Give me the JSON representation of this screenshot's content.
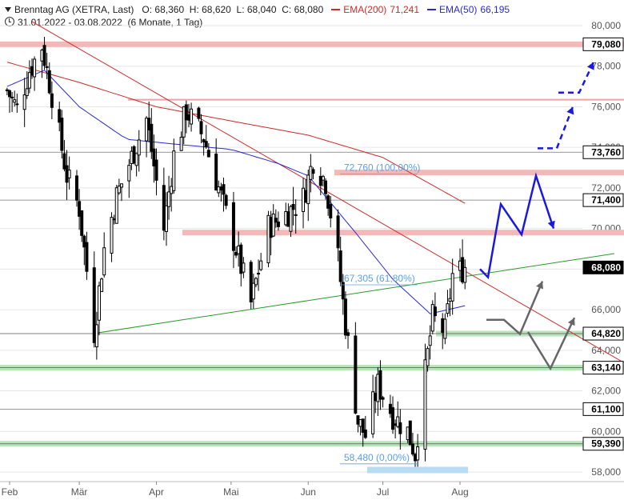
{
  "header": {
    "instrument": "Brenntag AG (XETRA, Last)",
    "open": "O: 68,360",
    "high": "H: 68,620",
    "low": "L: 68,040",
    "close": "C: 68,080",
    "ema200_label": "EMA(200)",
    "ema200_value": "71,241",
    "ema50_label": "EMA(50)",
    "ema50_value": "66,195",
    "date_range": "31.01.2022 - 03.08.2022",
    "period": "(6 Monate, 1 Tag)"
  },
  "colors": {
    "ema200": "#cc2b2b",
    "ema50": "#2b2bcc",
    "trend_down": "#cc2b2b",
    "trend_up": "#2a9a2a",
    "resistance_zone": "#f4b8b8",
    "support_zone": "#b9e3b9",
    "scenario_primary": "#1a1adf",
    "scenario_alt": "#666666",
    "fib_label": "#5aa0e8",
    "candle": "#000000"
  },
  "chart_data": {
    "type": "candlestick",
    "y_axis": {
      "range": [
        57.5,
        81.2
      ],
      "ticks": [
        "80,000",
        "78,000",
        "76,000",
        "74,000",
        "72,000",
        "70,000",
        "68,000",
        "66,000",
        "64,000",
        "62,000",
        "60,000",
        "58,000"
      ],
      "tick_values": [
        80,
        78,
        76,
        74,
        72,
        70,
        68,
        66,
        64,
        62,
        60,
        58
      ],
      "position": "right"
    },
    "x_axis": {
      "labels": [
        "Feb",
        "Mär",
        "Apr",
        "Mai",
        "Jun",
        "Jul",
        "Aug"
      ],
      "label_dates": [
        "2022-02-01",
        "2022-03-01",
        "2022-04-01",
        "2022-05-01",
        "2022-06-01",
        "2022-07-01",
        "2022-08-01"
      ],
      "range": [
        "2022-01-31",
        "2022-08-03"
      ]
    },
    "price_tags": [
      {
        "label": "79,080",
        "value": 79.08
      },
      {
        "label": "73,760",
        "value": 73.76
      },
      {
        "label": "71,400",
        "value": 71.4
      },
      {
        "label": "68,080",
        "value": 68.08,
        "current": true
      },
      {
        "label": "64,820",
        "value": 64.82
      },
      {
        "label": "63,140",
        "value": 63.14
      },
      {
        "label": "61,100",
        "value": 61.1
      },
      {
        "label": "59,390",
        "value": 59.39
      }
    ],
    "annotations": [
      {
        "label": "72,760 (100,00%)",
        "value": 72.76
      },
      {
        "label": "67,305 (61,80%)",
        "value": 67.305
      },
      {
        "label": "58,480 (0,00%)",
        "value": 58.48
      }
    ],
    "close_series_anchors": [
      {
        "date": "2022-01-31",
        "close": 76.8
      },
      {
        "date": "2022-02-04",
        "close": 75.9
      },
      {
        "date": "2022-02-09",
        "close": 77.8
      },
      {
        "date": "2022-02-14",
        "close": 79.0
      },
      {
        "date": "2022-02-18",
        "close": 76.6
      },
      {
        "date": "2022-02-24",
        "close": 72.6
      },
      {
        "date": "2022-03-01",
        "close": 71.0
      },
      {
        "date": "2022-03-07",
        "close": 64.9
      },
      {
        "date": "2022-03-11",
        "close": 69.0
      },
      {
        "date": "2022-03-16",
        "close": 71.6
      },
      {
        "date": "2022-03-22",
        "close": 73.5
      },
      {
        "date": "2022-03-28",
        "close": 75.4
      },
      {
        "date": "2022-04-04",
        "close": 70.0
      },
      {
        "date": "2022-04-08",
        "close": 73.6
      },
      {
        "date": "2022-04-13",
        "close": 75.8
      },
      {
        "date": "2022-04-20",
        "close": 74.5
      },
      {
        "date": "2022-04-26",
        "close": 72.0
      },
      {
        "date": "2022-05-03",
        "close": 69.0
      },
      {
        "date": "2022-05-09",
        "close": 66.3
      },
      {
        "date": "2022-05-16",
        "close": 70.1
      },
      {
        "date": "2022-05-24",
        "close": 70.8
      },
      {
        "date": "2022-05-30",
        "close": 71.5
      },
      {
        "date": "2022-06-03",
        "close": 73.4
      },
      {
        "date": "2022-06-08",
        "close": 72.3
      },
      {
        "date": "2022-06-13",
        "close": 68.5
      },
      {
        "date": "2022-06-16",
        "close": 65.3
      },
      {
        "date": "2022-06-21",
        "close": 60.5
      },
      {
        "date": "2022-06-24",
        "close": 59.8
      },
      {
        "date": "2022-06-29",
        "close": 62.3
      },
      {
        "date": "2022-07-05",
        "close": 60.8
      },
      {
        "date": "2022-07-11",
        "close": 60.0
      },
      {
        "date": "2022-07-14",
        "close": 58.9
      },
      {
        "date": "2022-07-18",
        "close": 62.9
      },
      {
        "date": "2022-07-21",
        "close": 65.6
      },
      {
        "date": "2022-07-26",
        "close": 64.9
      },
      {
        "date": "2022-07-29",
        "close": 67.7
      },
      {
        "date": "2022-08-03",
        "close": 68.08
      }
    ],
    "ema200_anchors": [
      {
        "date": "2022-01-31",
        "value": 78.2
      },
      {
        "date": "2022-03-01",
        "value": 77.2
      },
      {
        "date": "2022-04-01",
        "value": 76.0
      },
      {
        "date": "2022-05-01",
        "value": 75.3
      },
      {
        "date": "2022-06-01",
        "value": 74.6
      },
      {
        "date": "2022-07-01",
        "value": 73.5
      },
      {
        "date": "2022-08-03",
        "value": 71.241
      }
    ],
    "ema50_anchors": [
      {
        "date": "2022-01-31",
        "value": 77.0
      },
      {
        "date": "2022-02-15",
        "value": 77.8
      },
      {
        "date": "2022-03-01",
        "value": 76.0
      },
      {
        "date": "2022-03-20",
        "value": 74.4
      },
      {
        "date": "2022-04-05",
        "value": 74.2
      },
      {
        "date": "2022-05-01",
        "value": 73.9
      },
      {
        "date": "2022-05-20",
        "value": 73.2
      },
      {
        "date": "2022-06-01",
        "value": 72.6
      },
      {
        "date": "2022-06-20",
        "value": 69.8
      },
      {
        "date": "2022-07-05",
        "value": 67.5
      },
      {
        "date": "2022-07-20",
        "value": 65.8
      },
      {
        "date": "2022-08-03",
        "value": 66.195
      }
    ],
    "trendlines": [
      {
        "name": "downtrend",
        "from": {
          "date": "2022-02-10",
          "value": 80.2
        },
        "to": {
          "date": "2022-08-03",
          "value": 67.9
        }
      },
      {
        "name": "uptrend",
        "from": {
          "date": "2022-03-08",
          "value": 64.85
        },
        "to": {
          "date": "2022-08-03",
          "value": 68.45
        }
      }
    ],
    "horizontal_lines": [
      {
        "value": 79.08,
        "style": "red-zone"
      },
      {
        "value": 76.35,
        "style": "red-thin"
      },
      {
        "value": 73.76,
        "style": "grey"
      },
      {
        "value": 72.76,
        "style": "red-zone"
      },
      {
        "value": 71.4,
        "style": "grey"
      },
      {
        "value": 69.8,
        "style": "red-zone"
      },
      {
        "value": 64.82,
        "style": "green-zone"
      },
      {
        "value": 63.14,
        "style": "green-zone"
      },
      {
        "value": 61.1,
        "style": "grey"
      },
      {
        "value": 59.39,
        "style": "green-zone"
      }
    ]
  }
}
